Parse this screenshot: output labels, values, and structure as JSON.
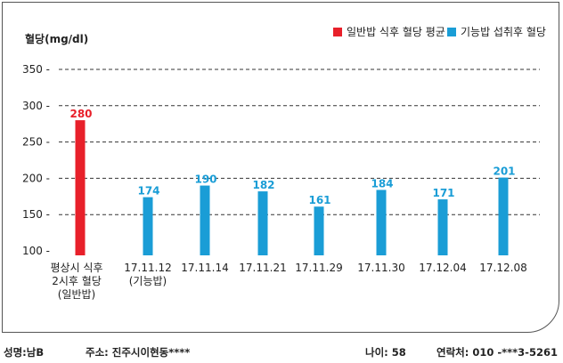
{
  "chart_data": {
    "type": "bar",
    "ylabel": "혈당(mg/dl)",
    "ylim": [
      100,
      350
    ],
    "yticks": [
      100,
      150,
      200,
      250,
      300,
      350
    ],
    "categories": [
      [
        "평상시 식후",
        "2시후 혈당",
        "(일반밥)"
      ],
      [
        "17.11.12",
        "(기능밥)"
      ],
      [
        "17.11.14"
      ],
      [
        "17.11.21"
      ],
      [
        "17.11.29"
      ],
      [
        "17.11.30"
      ],
      [
        "17.12.04"
      ],
      [
        "17.12.08"
      ]
    ],
    "values": [
      280,
      174,
      190,
      182,
      161,
      184,
      171,
      201
    ],
    "bar_colors": [
      "#e8202a",
      "#1a9dd6",
      "#1a9dd6",
      "#1a9dd6",
      "#1a9dd6",
      "#1a9dd6",
      "#1a9dd6",
      "#1a9dd6"
    ],
    "series": [
      {
        "name": "일반밥 식후 혈당 평균",
        "color": "#e8202a"
      },
      {
        "name": "기능밥 섭취후 혈당",
        "color": "#1a9dd6"
      }
    ],
    "legend_position": "top-right",
    "grid": "dashed horizontal"
  },
  "footer": {
    "name": "성명:남B",
    "address": "주소: 진주시이현동****",
    "age": "나이: 58",
    "contact": "연락처: 010 -***3-5261"
  }
}
